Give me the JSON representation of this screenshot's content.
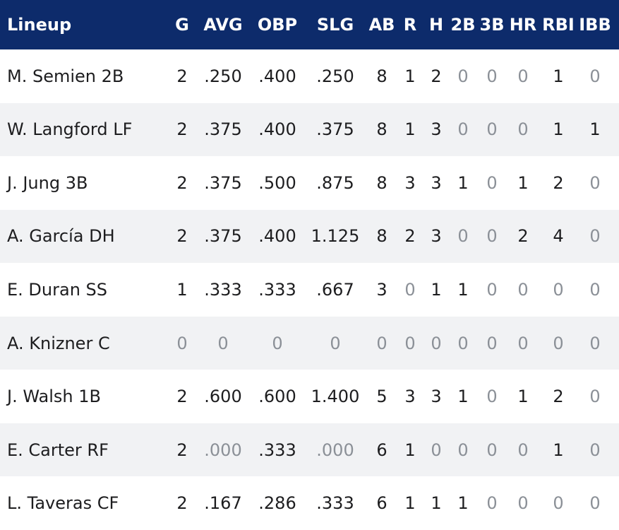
{
  "table": {
    "columns": [
      "Lineup",
      "G",
      "AVG",
      "OBP",
      "SLG",
      "AB",
      "R",
      "H",
      "2B",
      "3B",
      "HR",
      "RBI",
      "IBB"
    ],
    "rows": [
      [
        "M. Semien 2B",
        "2",
        ".250",
        ".400",
        ".250",
        "8",
        "1",
        "2",
        "0",
        "0",
        "0",
        "1",
        "0"
      ],
      [
        "W. Langford LF",
        "2",
        ".375",
        ".400",
        ".375",
        "8",
        "1",
        "3",
        "0",
        "0",
        "0",
        "1",
        "1"
      ],
      [
        "J. Jung 3B",
        "2",
        ".375",
        ".500",
        ".875",
        "8",
        "3",
        "3",
        "1",
        "0",
        "1",
        "2",
        "0"
      ],
      [
        "A. García DH",
        "2",
        ".375",
        ".400",
        "1.125",
        "8",
        "2",
        "3",
        "0",
        "0",
        "2",
        "4",
        "0"
      ],
      [
        "E. Duran SS",
        "1",
        ".333",
        ".333",
        ".667",
        "3",
        "0",
        "1",
        "1",
        "0",
        "0",
        "0",
        "0"
      ],
      [
        "A. Knizner C",
        "0",
        "0",
        "0",
        "0",
        "0",
        "0",
        "0",
        "0",
        "0",
        "0",
        "0",
        "0"
      ],
      [
        "J. Walsh 1B",
        "2",
        ".600",
        ".600",
        "1.400",
        "5",
        "3",
        "3",
        "1",
        "0",
        "1",
        "2",
        "0"
      ],
      [
        "E. Carter RF",
        "2",
        ".000",
        ".333",
        ".000",
        "6",
        "1",
        "0",
        "0",
        "0",
        "0",
        "1",
        "0"
      ],
      [
        "L. Taveras CF",
        "2",
        ".167",
        ".286",
        ".333",
        "6",
        "1",
        "1",
        "1",
        "0",
        "0",
        "0",
        "0"
      ]
    ]
  }
}
